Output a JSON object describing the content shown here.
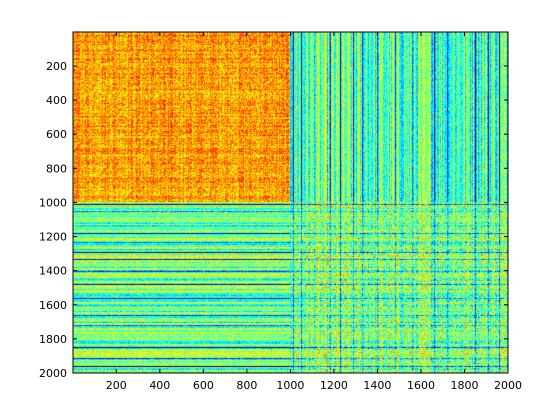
{
  "chart_data": {
    "type": "heatmap",
    "title": "",
    "xlabel": "",
    "ylabel": "",
    "xlim": [
      1,
      2000
    ],
    "ylim": [
      1,
      2000
    ],
    "y_axis_direction": "top-to-bottom",
    "grid": false,
    "colormap": "jet",
    "x_ticks": [
      200,
      400,
      600,
      800,
      1000,
      1200,
      1400,
      1600,
      1800,
      2000
    ],
    "y_ticks": [
      200,
      400,
      600,
      800,
      1000,
      1200,
      1400,
      1600,
      1800,
      2000
    ],
    "blocks": [
      {
        "rows": [
          1,
          1000
        ],
        "cols": [
          1,
          1000
        ],
        "level": 0.72,
        "pattern": "orange-yellow-red"
      },
      {
        "rows": [
          1,
          1000
        ],
        "cols": [
          1000,
          2000
        ],
        "level": 0.45,
        "pattern": "cyan-yellow vertical stripes"
      },
      {
        "rows": [
          1000,
          2000
        ],
        "cols": [
          1,
          1000
        ],
        "level": 0.48,
        "pattern": "yellow-cyan horizontal stripes"
      },
      {
        "rows": [
          1000,
          2000
        ],
        "cols": [
          1000,
          2000
        ],
        "level": 0.5,
        "pattern": "mixed cyan-yellow-orange"
      }
    ],
    "dark_bands": [
      1010,
      1050,
      1180,
      1230,
      1290,
      1330,
      1400,
      1480,
      1560,
      1660,
      1720,
      1850,
      1910,
      1960
    ]
  }
}
